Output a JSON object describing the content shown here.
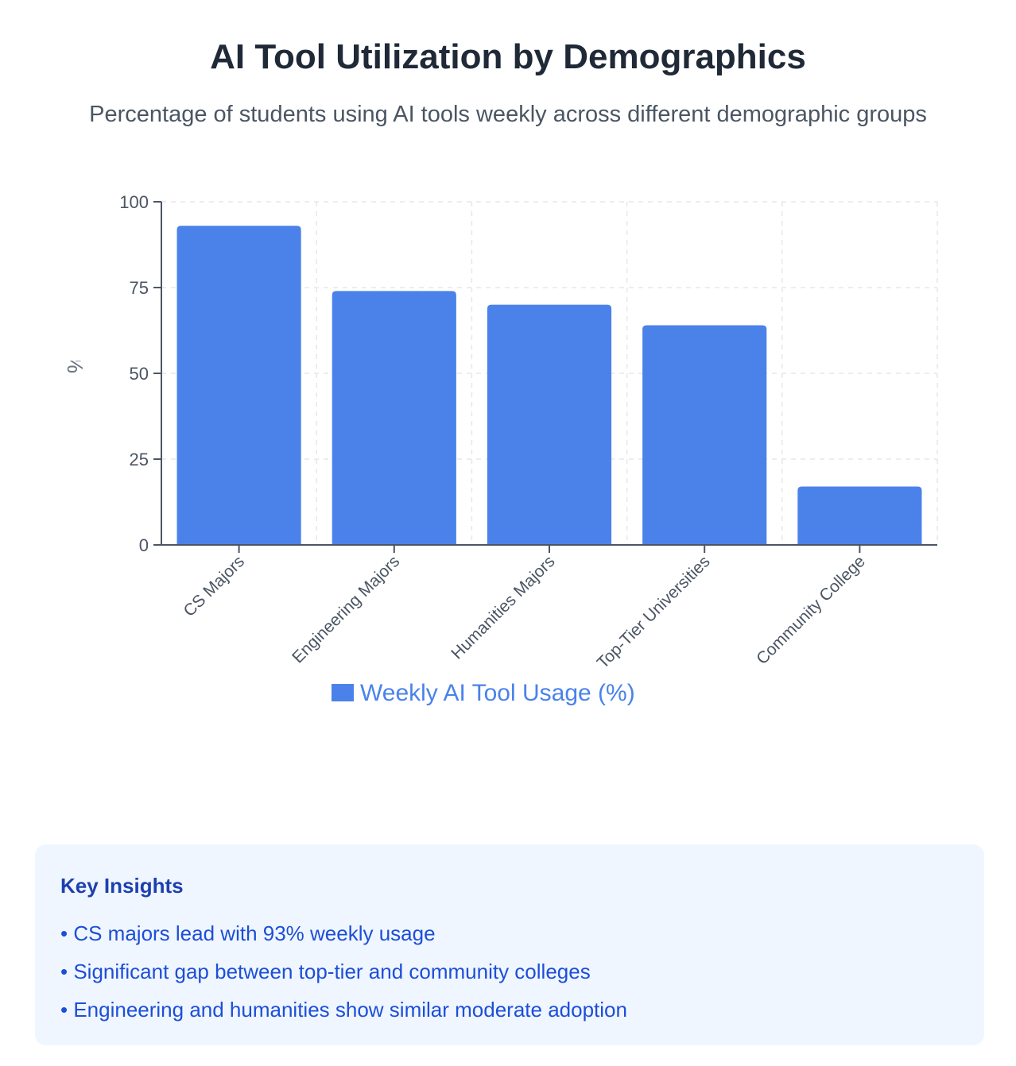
{
  "page": {
    "title": "AI Tool Utilization by Demographics",
    "subtitle": "Percentage of students using AI tools weekly across different demographic groups"
  },
  "chart_data": {
    "type": "bar",
    "categories": [
      "CS Majors",
      "Engineering Majors",
      "Humanities Majors",
      "Top-Tier Universities",
      "Community College"
    ],
    "series": [
      {
        "name": "Weekly AI Tool Usage (%)",
        "values": [
          93,
          74,
          70,
          64,
          17
        ],
        "color": "#4a82ea"
      }
    ],
    "ylabel": "% Using AI Tools Weekly",
    "ylim": [
      0,
      100
    ],
    "yticks": [
      "0",
      "25",
      "50",
      "75",
      "100"
    ],
    "grid": true,
    "legend": "bottom-center"
  },
  "insights": {
    "title": "Key Insights",
    "items": [
      "CS majors lead with 93% weekly usage",
      "Significant gap between top-tier and community colleges",
      "Engineering and humanities show similar moderate adoption"
    ]
  }
}
